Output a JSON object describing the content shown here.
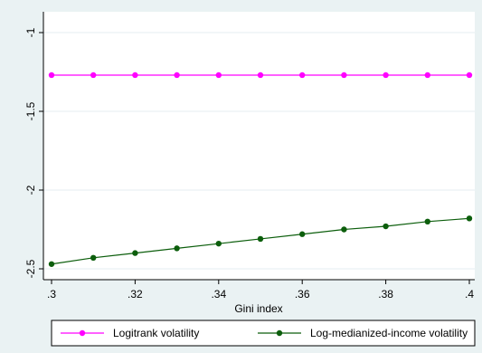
{
  "chart_data": {
    "type": "line",
    "xlabel": "Gini index",
    "ylabel": "",
    "x": [
      0.3,
      0.31,
      0.32,
      0.33,
      0.34,
      0.35,
      0.36,
      0.37,
      0.38,
      0.39,
      0.4
    ],
    "xlim": [
      0.3,
      0.4
    ],
    "ylim": [
      -2.5,
      -1.0
    ],
    "xticks": [
      0.3,
      0.32,
      0.34,
      0.36,
      0.38,
      0.4
    ],
    "xtick_labels": [
      ".3",
      ".32",
      ".34",
      ".36",
      ".38",
      ".4"
    ],
    "yticks": [
      -2.5,
      -2.0,
      -1.5,
      -1.0
    ],
    "ytick_labels": [
      "-2.5",
      "-2",
      "-1.5",
      "-1"
    ],
    "grid": "horizontal",
    "legend_position": "bottom",
    "series": [
      {
        "name": "Logitrank volatility",
        "color": "#ff00ff",
        "values": [
          -1.27,
          -1.27,
          -1.27,
          -1.27,
          -1.27,
          -1.27,
          -1.27,
          -1.27,
          -1.27,
          -1.27,
          -1.27
        ]
      },
      {
        "name": "Log-medianized-income volatility",
        "color": "#0c5e0c",
        "values": [
          -2.47,
          -2.43,
          -2.4,
          -2.37,
          -2.34,
          -2.31,
          -2.28,
          -2.25,
          -2.23,
          -2.2,
          -2.18
        ]
      }
    ]
  }
}
